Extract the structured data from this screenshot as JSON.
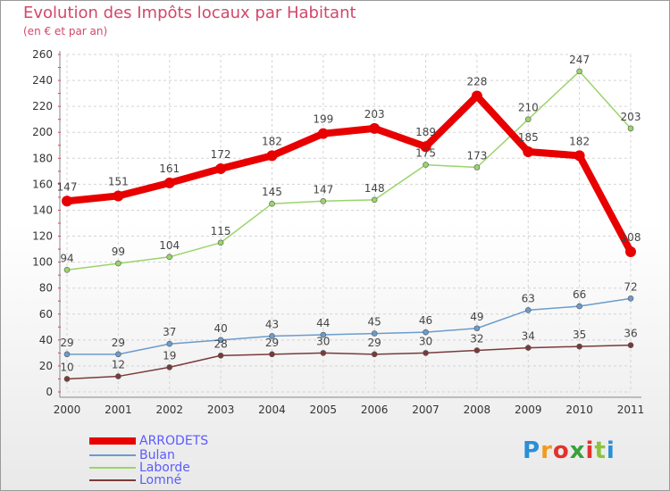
{
  "title": "Evolution des Impôts locaux par Habitant",
  "subtitle": "(en € et par an)",
  "logo": {
    "text": "Proxiti",
    "letters": [
      "P",
      "r",
      "o",
      "x",
      "i",
      "t",
      "i"
    ],
    "colors": [
      "#2a8fd6",
      "#f39a1f",
      "#e2322c",
      "#3aa03c",
      "#e2322c",
      "#8ac43f",
      "#2a8fd6"
    ]
  },
  "chart_data": {
    "type": "line",
    "title": "Evolution des Impôts locaux par Habitant",
    "subtitle": "(en € et par an)",
    "xlabel": "",
    "ylabel": "",
    "ylim": [
      0,
      260
    ],
    "y_ticks": [
      0,
      20,
      40,
      60,
      80,
      100,
      120,
      140,
      160,
      180,
      200,
      220,
      240,
      260
    ],
    "grid": true,
    "legend_position": "bottom-left",
    "x": [
      "2000",
      "2001",
      "2002",
      "2003",
      "2004",
      "2005",
      "2006",
      "2007",
      "2008",
      "2009",
      "2010",
      "2011"
    ],
    "series": [
      {
        "name": "ARRODETS",
        "color": "#e80000",
        "legend_color": "#5b5bff",
        "values": [
          147,
          151,
          161,
          172,
          182,
          199,
          203,
          189,
          228,
          185,
          182,
          108
        ]
      },
      {
        "name": "Bulan",
        "color": "#6b9ccc",
        "legend_color": "#5b5bff",
        "values": [
          29,
          29,
          37,
          40,
          43,
          44,
          45,
          46,
          49,
          63,
          66,
          72
        ]
      },
      {
        "name": "Laborde",
        "color": "#9ad46a",
        "legend_color": "#5b5bff",
        "values": [
          94,
          99,
          104,
          115,
          145,
          147,
          148,
          175,
          173,
          210,
          247,
          203
        ]
      },
      {
        "name": "Lomné",
        "color": "#7a3a3a",
        "legend_color": "#5b5bff",
        "values": [
          10,
          12,
          19,
          28,
          29,
          30,
          29,
          30,
          32,
          34,
          35,
          36
        ]
      }
    ]
  }
}
